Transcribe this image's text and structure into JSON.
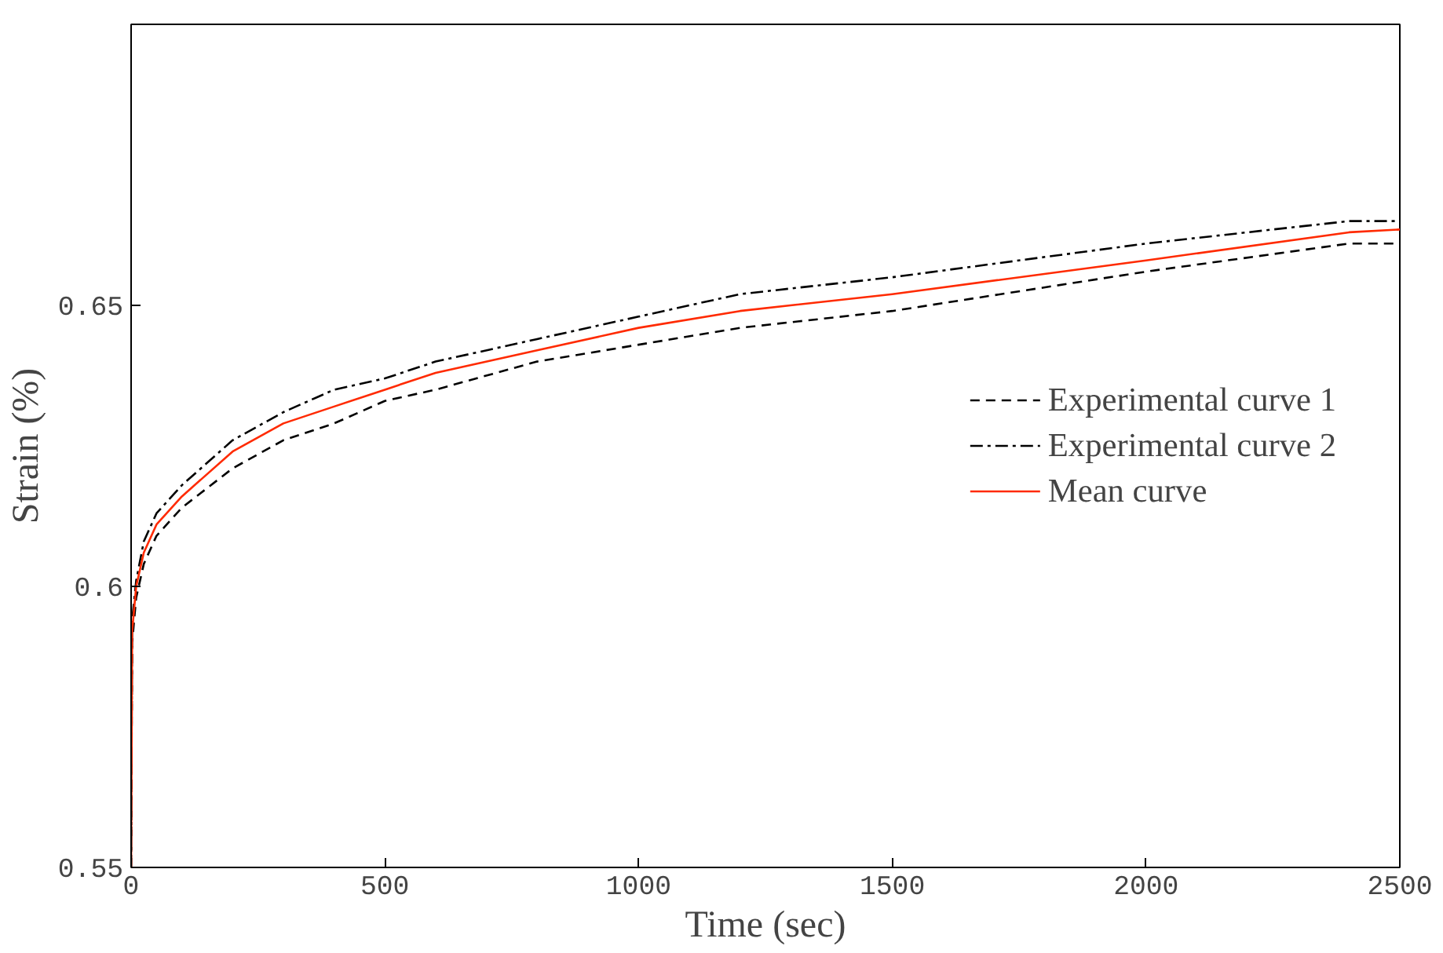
{
  "chart_data": {
    "type": "line",
    "xlabel": "Time (sec)",
    "ylabel": "Strain (%)",
    "xlim": [
      0,
      2500
    ],
    "ylim": [
      0.55,
      0.7
    ],
    "xticks": [
      0,
      500,
      1000,
      1500,
      2000,
      2500
    ],
    "yticks": [
      0.55,
      0.6,
      0.65
    ],
    "grid": false,
    "legend": "right",
    "marker": "none",
    "series": [
      {
        "name": "Experimental curve 1",
        "color": "#000000",
        "line_style": "dashed",
        "x": [
          0,
          2,
          10,
          25,
          50,
          100,
          200,
          300,
          400,
          500,
          600,
          800,
          1000,
          1200,
          1500,
          2000,
          2400,
          2500
        ],
        "values": [
          0.55,
          0.59,
          0.598,
          0.604,
          0.609,
          0.614,
          0.621,
          0.626,
          0.629,
          0.633,
          0.635,
          0.64,
          0.643,
          0.646,
          0.649,
          0.656,
          0.661,
          0.661
        ]
      },
      {
        "name": "Experimental curve 2",
        "color": "#000000",
        "line_style": "dashdot",
        "x": [
          0,
          2,
          10,
          25,
          50,
          100,
          200,
          300,
          400,
          500,
          600,
          800,
          1000,
          1200,
          1500,
          2000,
          2400,
          2500
        ],
        "values": [
          0.55,
          0.594,
          0.601,
          0.608,
          0.613,
          0.618,
          0.626,
          0.631,
          0.635,
          0.637,
          0.64,
          0.644,
          0.648,
          0.652,
          0.655,
          0.661,
          0.665,
          0.665
        ]
      },
      {
        "name": "Mean curve",
        "color": "#ff2a00",
        "line_style": "solid",
        "x": [
          0,
          2,
          10,
          25,
          50,
          100,
          200,
          300,
          400,
          500,
          600,
          800,
          1000,
          1200,
          1500,
          2000,
          2400,
          2500
        ],
        "values": [
          0.55,
          0.592,
          0.6,
          0.606,
          0.611,
          0.616,
          0.624,
          0.629,
          0.632,
          0.635,
          0.638,
          0.642,
          0.646,
          0.649,
          0.652,
          0.658,
          0.663,
          0.6635
        ]
      }
    ]
  }
}
